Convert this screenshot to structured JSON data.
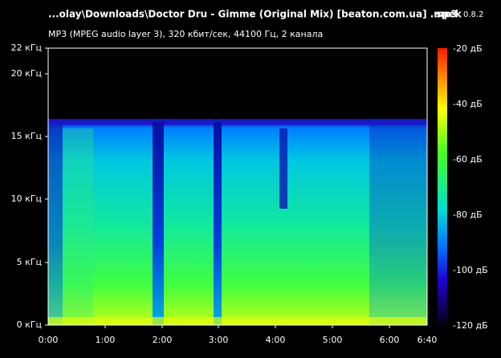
{
  "header": {
    "file": "...olay\\Downloads\\Doctor Dru - Gimme (Original Mix) [beaton.com.ua] .mp3",
    "app": "spek",
    "version": "0.8.2",
    "info": "MP3 (MPEG audio layer 3), 320 кбит/сек, 44100 Гц, 2 канала"
  },
  "frequency_axis": [
    "22 кГц",
    "20 кГц",
    "15 кГц",
    "10 кГц",
    "5 кГц",
    "0 кГц"
  ],
  "time_axis": [
    "0:00",
    "1:00",
    "2:00",
    "3:00",
    "4:00",
    "5:00",
    "6:00",
    "6:40"
  ],
  "level_axis": [
    "-20 дБ",
    "-40 дБ",
    "-60 дБ",
    "-80 дБ",
    "-100 дБ",
    "-120 дБ"
  ]
}
